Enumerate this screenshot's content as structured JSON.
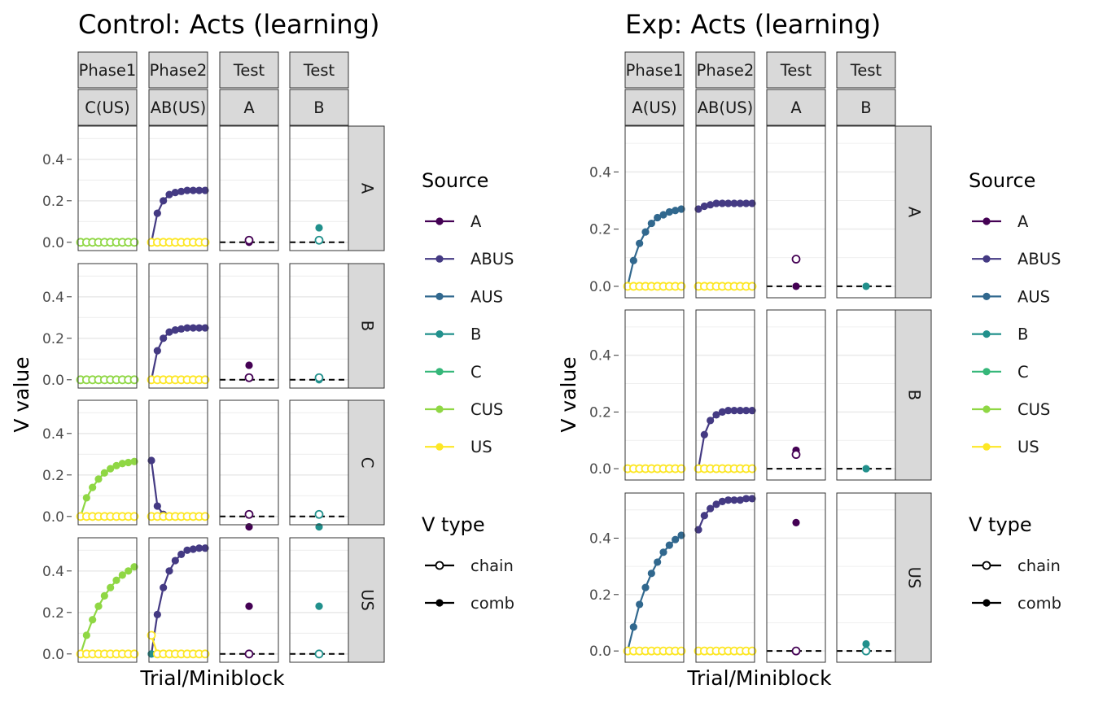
{
  "colors": {
    "A": "#440154",
    "ABUS": "#443A83",
    "AUS": "#31688E",
    "B": "#21908C",
    "C": "#35B779",
    "CUS": "#8FD744",
    "US": "#FDE725",
    "strip_fill": "#D9D9D9",
    "grid": "#EBEBEB",
    "panel_border": "#333333"
  },
  "chart_data": [
    {
      "type": "line",
      "title": "Control: Acts (learning)",
      "xlabel": "Trial/Miniblock",
      "ylabel": "V value",
      "ylim": [
        -0.04,
        0.56
      ],
      "yticks": [
        "0.0",
        "0.2",
        "0.4"
      ],
      "grid": true,
      "legend_position": "right",
      "columns": [
        {
          "top": "Phase1",
          "bottom": "C(US)"
        },
        {
          "top": "Phase2",
          "bottom": "AB(US)"
        },
        {
          "top": "Test",
          "bottom": "A"
        },
        {
          "top": "Test",
          "bottom": "B"
        }
      ],
      "rows": [
        "A",
        "B",
        "C",
        "US"
      ],
      "series": [
        {
          "row": "A",
          "col": 0,
          "source": "C",
          "vtype": "comb",
          "values": [
            0,
            0,
            0,
            0,
            0,
            0,
            0,
            0,
            0,
            0
          ]
        },
        {
          "row": "A",
          "col": 0,
          "source": "CUS",
          "vtype": "chain",
          "values": [
            0,
            0,
            0,
            0,
            0,
            0,
            0,
            0,
            0,
            0
          ]
        },
        {
          "row": "A",
          "col": 1,
          "source": "ABUS",
          "vtype": "comb",
          "values": [
            0,
            0.14,
            0.2,
            0.23,
            0.24,
            0.245,
            0.25,
            0.25,
            0.25,
            0.25
          ]
        },
        {
          "row": "A",
          "col": 1,
          "source": "B",
          "vtype": "comb",
          "values": [
            0,
            0,
            0,
            0,
            0,
            0,
            0,
            0,
            0,
            0
          ]
        },
        {
          "row": "A",
          "col": 1,
          "source": "US",
          "vtype": "chain",
          "values": [
            0,
            0,
            0,
            0,
            0,
            0,
            0,
            0,
            0,
            0
          ]
        },
        {
          "row": "A",
          "col": 2,
          "source": "A",
          "vtype": "comb",
          "values": [
            0
          ]
        },
        {
          "row": "A",
          "col": 2,
          "source": "A",
          "vtype": "chain",
          "values": [
            0.01
          ]
        },
        {
          "row": "A",
          "col": 3,
          "source": "B",
          "vtype": "comb",
          "values": [
            0.07
          ]
        },
        {
          "row": "A",
          "col": 3,
          "source": "B",
          "vtype": "chain",
          "values": [
            0.01
          ]
        },
        {
          "row": "B",
          "col": 0,
          "source": "C",
          "vtype": "comb",
          "values": [
            0,
            0,
            0,
            0,
            0,
            0,
            0,
            0,
            0,
            0
          ]
        },
        {
          "row": "B",
          "col": 0,
          "source": "CUS",
          "vtype": "chain",
          "values": [
            0,
            0,
            0,
            0,
            0,
            0,
            0,
            0,
            0,
            0
          ]
        },
        {
          "row": "B",
          "col": 1,
          "source": "ABUS",
          "vtype": "comb",
          "values": [
            0,
            0.14,
            0.2,
            0.23,
            0.24,
            0.245,
            0.25,
            0.25,
            0.25,
            0.25
          ]
        },
        {
          "row": "B",
          "col": 1,
          "source": "B",
          "vtype": "comb",
          "values": [
            0,
            0,
            0,
            0,
            0,
            0,
            0,
            0,
            0,
            0
          ]
        },
        {
          "row": "B",
          "col": 1,
          "source": "US",
          "vtype": "chain",
          "values": [
            0,
            0,
            0,
            0,
            0,
            0,
            0,
            0,
            0,
            0
          ]
        },
        {
          "row": "B",
          "col": 2,
          "source": "A",
          "vtype": "comb",
          "values": [
            0.07
          ]
        },
        {
          "row": "B",
          "col": 2,
          "source": "A",
          "vtype": "chain",
          "values": [
            0.01
          ]
        },
        {
          "row": "B",
          "col": 3,
          "source": "B",
          "vtype": "comb",
          "values": [
            0
          ]
        },
        {
          "row": "B",
          "col": 3,
          "source": "B",
          "vtype": "chain",
          "values": [
            0.01
          ]
        },
        {
          "row": "C",
          "col": 0,
          "source": "CUS",
          "vtype": "comb",
          "values": [
            0,
            0.09,
            0.14,
            0.18,
            0.21,
            0.23,
            0.245,
            0.255,
            0.26,
            0.265
          ]
        },
        {
          "row": "C",
          "col": 0,
          "source": "US",
          "vtype": "chain",
          "values": [
            0,
            0,
            0,
            0,
            0,
            0,
            0,
            0,
            0,
            0
          ]
        },
        {
          "row": "C",
          "col": 1,
          "source": "ABUS",
          "vtype": "comb",
          "values": [
            0.27,
            0.05,
            0.01,
            0,
            0,
            0,
            0,
            0,
            0,
            0
          ]
        },
        {
          "row": "C",
          "col": 1,
          "source": "B",
          "vtype": "comb",
          "values": [
            0,
            0,
            0,
            0,
            0,
            0,
            0,
            0,
            0,
            0
          ]
        },
        {
          "row": "C",
          "col": 1,
          "source": "US",
          "vtype": "chain",
          "values": [
            0,
            0,
            0,
            0,
            0,
            0,
            0,
            0,
            0,
            0
          ]
        },
        {
          "row": "C",
          "col": 2,
          "source": "A",
          "vtype": "comb",
          "values": [
            -0.05
          ]
        },
        {
          "row": "C",
          "col": 2,
          "source": "A",
          "vtype": "chain",
          "values": [
            0.01
          ]
        },
        {
          "row": "C",
          "col": 3,
          "source": "B",
          "vtype": "comb",
          "values": [
            -0.05
          ]
        },
        {
          "row": "C",
          "col": 3,
          "source": "B",
          "vtype": "chain",
          "values": [
            0.01
          ]
        },
        {
          "row": "US",
          "col": 0,
          "source": "CUS",
          "vtype": "comb",
          "values": [
            0,
            0.09,
            0.165,
            0.23,
            0.28,
            0.32,
            0.355,
            0.38,
            0.4,
            0.42
          ]
        },
        {
          "row": "US",
          "col": 0,
          "source": "US",
          "vtype": "chain",
          "values": [
            0,
            0,
            0,
            0,
            0,
            0,
            0,
            0,
            0,
            0
          ]
        },
        {
          "row": "US",
          "col": 1,
          "source": "ABUS",
          "vtype": "comb",
          "values": [
            0,
            0.19,
            0.32,
            0.4,
            0.45,
            0.48,
            0.5,
            0.505,
            0.51,
            0.51
          ]
        },
        {
          "row": "US",
          "col": 1,
          "source": "B",
          "vtype": "comb",
          "values": [
            0,
            0,
            0,
            0,
            0,
            0,
            0,
            0,
            0,
            0
          ]
        },
        {
          "row": "US",
          "col": 1,
          "source": "US",
          "vtype": "chain",
          "values": [
            0.09,
            0,
            0,
            0,
            0,
            0,
            0,
            0,
            0,
            0
          ]
        },
        {
          "row": "US",
          "col": 2,
          "source": "A",
          "vtype": "comb",
          "values": [
            0.23
          ]
        },
        {
          "row": "US",
          "col": 2,
          "source": "A",
          "vtype": "chain",
          "values": [
            0
          ]
        },
        {
          "row": "US",
          "col": 3,
          "source": "B",
          "vtype": "comb",
          "values": [
            0.23
          ]
        },
        {
          "row": "US",
          "col": 3,
          "source": "B",
          "vtype": "chain",
          "values": [
            0
          ]
        }
      ]
    },
    {
      "type": "line",
      "title": "Exp: Acts (learning)",
      "xlabel": "Trial/Miniblock",
      "ylabel": "V value",
      "ylim": [
        -0.04,
        0.56
      ],
      "yticks": [
        "0.0",
        "0.2",
        "0.4"
      ],
      "grid": true,
      "legend_position": "right",
      "columns": [
        {
          "top": "Phase1",
          "bottom": "A(US)"
        },
        {
          "top": "Phase2",
          "bottom": "AB(US)"
        },
        {
          "top": "Test",
          "bottom": "A"
        },
        {
          "top": "Test",
          "bottom": "B"
        }
      ],
      "rows": [
        "A",
        "B",
        "US"
      ],
      "series": [
        {
          "row": "A",
          "col": 0,
          "source": "AUS",
          "vtype": "comb",
          "values": [
            0,
            0.09,
            0.15,
            0.19,
            0.22,
            0.24,
            0.25,
            0.26,
            0.265,
            0.27
          ]
        },
        {
          "row": "A",
          "col": 0,
          "source": "A",
          "vtype": "comb",
          "values": [
            0,
            0,
            0,
            0,
            0,
            0,
            0,
            0,
            0,
            0
          ]
        },
        {
          "row": "A",
          "col": 0,
          "source": "US",
          "vtype": "chain",
          "values": [
            0,
            0,
            0,
            0,
            0,
            0,
            0,
            0,
            0,
            0
          ]
        },
        {
          "row": "A",
          "col": 1,
          "source": "ABUS",
          "vtype": "comb",
          "values": [
            0.27,
            0.28,
            0.285,
            0.29,
            0.29,
            0.29,
            0.29,
            0.29,
            0.29,
            0.29
          ]
        },
        {
          "row": "A",
          "col": 1,
          "source": "B",
          "vtype": "comb",
          "values": [
            0,
            0,
            0,
            0,
            0,
            0,
            0,
            0,
            0,
            0
          ]
        },
        {
          "row": "A",
          "col": 1,
          "source": "US",
          "vtype": "chain",
          "values": [
            0,
            0,
            0,
            0,
            0,
            0,
            0,
            0,
            0,
            0
          ]
        },
        {
          "row": "A",
          "col": 2,
          "source": "A",
          "vtype": "comb",
          "values": [
            0
          ]
        },
        {
          "row": "A",
          "col": 2,
          "source": "A",
          "vtype": "chain",
          "values": [
            0.095
          ]
        },
        {
          "row": "A",
          "col": 3,
          "source": "B",
          "vtype": "comb",
          "values": [
            0
          ]
        },
        {
          "row": "B",
          "col": 0,
          "source": "AUS",
          "vtype": "comb",
          "values": [
            0,
            0,
            0,
            0,
            0,
            0,
            0,
            0,
            0,
            0
          ]
        },
        {
          "row": "B",
          "col": 0,
          "source": "US",
          "vtype": "chain",
          "values": [
            0,
            0,
            0,
            0,
            0,
            0,
            0,
            0,
            0,
            0
          ]
        },
        {
          "row": "B",
          "col": 1,
          "source": "ABUS",
          "vtype": "comb",
          "values": [
            0,
            0.12,
            0.17,
            0.19,
            0.2,
            0.205,
            0.205,
            0.205,
            0.205,
            0.205
          ]
        },
        {
          "row": "B",
          "col": 1,
          "source": "B",
          "vtype": "comb",
          "values": [
            0,
            0,
            0,
            0,
            0,
            0,
            0,
            0,
            0,
            0
          ]
        },
        {
          "row": "B",
          "col": 1,
          "source": "US",
          "vtype": "chain",
          "values": [
            0,
            0,
            0,
            0,
            0,
            0,
            0,
            0,
            0,
            0
          ]
        },
        {
          "row": "B",
          "col": 2,
          "source": "A",
          "vtype": "comb",
          "values": [
            0.065
          ]
        },
        {
          "row": "B",
          "col": 2,
          "source": "A",
          "vtype": "chain",
          "values": [
            0.05
          ]
        },
        {
          "row": "B",
          "col": 3,
          "source": "B",
          "vtype": "comb",
          "values": [
            0
          ]
        },
        {
          "row": "US",
          "col": 0,
          "source": "AUS",
          "vtype": "comb",
          "values": [
            0,
            0.085,
            0.165,
            0.225,
            0.275,
            0.315,
            0.35,
            0.375,
            0.395,
            0.41
          ]
        },
        {
          "row": "US",
          "col": 0,
          "source": "A",
          "vtype": "comb",
          "values": [
            0,
            0,
            0,
            0,
            0,
            0,
            0,
            0,
            0,
            0
          ]
        },
        {
          "row": "US",
          "col": 0,
          "source": "US",
          "vtype": "chain",
          "values": [
            0,
            0,
            0,
            0,
            0,
            0,
            0,
            0,
            0,
            0
          ]
        },
        {
          "row": "US",
          "col": 1,
          "source": "ABUS",
          "vtype": "comb",
          "values": [
            0.43,
            0.48,
            0.505,
            0.52,
            0.53,
            0.535,
            0.535,
            0.535,
            0.54,
            0.54
          ]
        },
        {
          "row": "US",
          "col": 1,
          "source": "B",
          "vtype": "comb",
          "values": [
            0,
            0,
            0,
            0,
            0,
            0,
            0,
            0,
            0,
            0
          ]
        },
        {
          "row": "US",
          "col": 1,
          "source": "US",
          "vtype": "chain",
          "values": [
            0,
            0,
            0,
            0,
            0,
            0,
            0,
            0,
            0,
            0
          ]
        },
        {
          "row": "US",
          "col": 2,
          "source": "A",
          "vtype": "comb",
          "values": [
            0.455
          ]
        },
        {
          "row": "US",
          "col": 2,
          "source": "A",
          "vtype": "chain",
          "values": [
            0
          ]
        },
        {
          "row": "US",
          "col": 3,
          "source": "B",
          "vtype": "comb",
          "values": [
            0.025
          ]
        },
        {
          "row": "US",
          "col": 3,
          "source": "B",
          "vtype": "chain",
          "values": [
            0
          ]
        }
      ]
    }
  ],
  "legend": {
    "source_title": "Source",
    "sources": [
      "A",
      "ABUS",
      "AUS",
      "B",
      "C",
      "CUS",
      "US"
    ],
    "vtype_title": "V type",
    "vtypes": [
      "chain",
      "comb"
    ]
  }
}
